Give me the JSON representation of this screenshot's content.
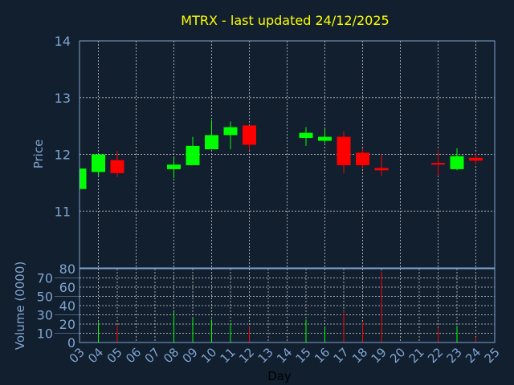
{
  "chart_data": {
    "type": "candlestick",
    "title": "MTRX - last updated 24/12/2025",
    "xlabel": "Day",
    "price_panel": {
      "ylabel": "Price",
      "ylim": [
        10,
        14
      ],
      "yticks": [
        11,
        12,
        13,
        14
      ],
      "grid": true
    },
    "volume_panel": {
      "ylabel": "Volume (0000)",
      "ylim": [
        0,
        80
      ],
      "yticks": [
        0,
        10,
        20,
        30,
        40,
        50,
        60,
        70,
        80
      ],
      "grid": true
    },
    "xlim": [
      3,
      25
    ],
    "xticks": [
      "03",
      "04",
      "05",
      "06",
      "07",
      "08",
      "09",
      "10",
      "11",
      "12",
      "13",
      "14",
      "15",
      "16",
      "17",
      "18",
      "19",
      "20",
      "21",
      "22",
      "23",
      "24",
      "25"
    ],
    "candles": [
      {
        "day": 3,
        "open": 11.39,
        "high": 11.75,
        "low": 11.39,
        "close": 11.75,
        "volume": 0
      },
      {
        "day": 4,
        "open": 11.69,
        "high": 12.0,
        "low": 11.62,
        "close": 12.0,
        "volume": 22
      },
      {
        "day": 5,
        "open": 11.9,
        "high": 12.06,
        "low": 11.6,
        "close": 11.67,
        "volume": 19
      },
      {
        "day": 8,
        "open": 11.74,
        "high": 11.94,
        "low": 11.58,
        "close": 11.82,
        "volume": 33
      },
      {
        "day": 9,
        "open": 11.81,
        "high": 12.31,
        "low": 11.81,
        "close": 12.15,
        "volume": 26
      },
      {
        "day": 10,
        "open": 12.09,
        "high": 12.6,
        "low": 12.09,
        "close": 12.34,
        "volume": 25
      },
      {
        "day": 11,
        "open": 12.34,
        "high": 12.58,
        "low": 12.09,
        "close": 12.48,
        "volume": 21
      },
      {
        "day": 12,
        "open": 12.51,
        "high": 12.51,
        "low": 12.07,
        "close": 12.17,
        "volume": 17
      },
      {
        "day": 15,
        "open": 12.29,
        "high": 12.48,
        "low": 12.15,
        "close": 12.38,
        "volume": 25
      },
      {
        "day": 16,
        "open": 12.24,
        "high": 12.45,
        "low": 12.2,
        "close": 12.31,
        "volume": 16
      },
      {
        "day": 17,
        "open": 12.31,
        "high": 12.41,
        "low": 11.67,
        "close": 11.81,
        "volume": 34
      },
      {
        "day": 18,
        "open": 12.03,
        "high": 12.1,
        "low": 11.75,
        "close": 11.81,
        "volume": 22
      },
      {
        "day": 19,
        "open": 11.76,
        "high": 12.0,
        "low": 11.62,
        "close": 11.72,
        "volume": 77
      },
      {
        "day": 22,
        "open": 11.85,
        "high": 12.08,
        "low": 11.62,
        "close": 11.82,
        "volume": 16
      },
      {
        "day": 23,
        "open": 11.74,
        "high": 12.11,
        "low": 11.72,
        "close": 11.97,
        "volume": 18
      },
      {
        "day": 24,
        "open": 11.94,
        "high": 12.02,
        "low": 11.82,
        "close": 11.89,
        "volume": 6
      }
    ],
    "colors": {
      "background": "#111f2f",
      "up": "#00ff00",
      "down": "#ff0000",
      "axis": "#7fa4d0",
      "grid": "#c8c8c8",
      "title": "#ffff00",
      "xlabel": "#000000"
    }
  }
}
